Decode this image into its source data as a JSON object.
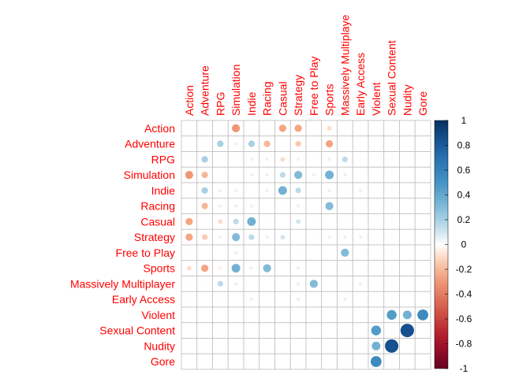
{
  "chart_data": {
    "type": "heatmap",
    "labels": [
      "Action",
      "Adventure",
      "RPG",
      "Simulation",
      "Indie",
      "Racing",
      "Casual",
      "Strategy",
      "Free to Play",
      "Sports",
      "Massively Multiplayer",
      "Early Access",
      "Violent",
      "Sexual Content",
      "Nudity",
      "Gore"
    ],
    "header_labels": [
      "Action",
      "Adventure",
      "RPG",
      "Simulation",
      "Indie",
      "Racing",
      "Casual",
      "Strategy",
      "Free to Play",
      "Sports",
      "Massively Multiplaye",
      "Early Access",
      "Violent",
      "Sexual Content",
      "Nudity",
      "Gore"
    ],
    "matrix": [
      [
        0,
        0.02,
        0,
        -0.3,
        0,
        0,
        -0.25,
        -0.25,
        0.02,
        -0.1,
        0.02,
        0.02,
        0,
        0,
        0,
        0
      ],
      [
        0.02,
        0,
        0.2,
        -0.05,
        0.2,
        -0.2,
        0,
        -0.15,
        0,
        -0.25,
        0.02,
        0,
        0,
        0,
        0,
        0
      ],
      [
        0,
        0.2,
        0,
        0,
        0.05,
        -0.05,
        -0.1,
        -0.05,
        0,
        -0.05,
        0.15,
        0.02,
        0,
        0.02,
        0,
        0
      ],
      [
        -0.3,
        -0.2,
        0,
        0,
        -0.05,
        0.05,
        0.15,
        0.3,
        0.05,
        0.35,
        0.05,
        0,
        0,
        0,
        0,
        0
      ],
      [
        0,
        0.2,
        0.05,
        -0.05,
        0,
        -0.05,
        0.35,
        0.15,
        0,
        0.05,
        0,
        0.05,
        0,
        0,
        0,
        0
      ],
      [
        0,
        -0.2,
        -0.05,
        0.05,
        -0.05,
        0,
        0.02,
        -0.05,
        0,
        0.3,
        0,
        0,
        0,
        0,
        0,
        0
      ],
      [
        -0.25,
        0,
        -0.1,
        0.15,
        0.35,
        0.02,
        0,
        0.1,
        0.02,
        0,
        0,
        0,
        0,
        0,
        0,
        0
      ],
      [
        -0.25,
        -0.15,
        -0.05,
        0.3,
        0.15,
        -0.05,
        0.1,
        0,
        0.02,
        0.05,
        -0.05,
        0.05,
        0,
        0,
        0,
        0
      ],
      [
        0.02,
        0,
        0,
        0.05,
        0,
        0,
        0.02,
        0.02,
        0,
        0,
        0.3,
        0,
        0,
        0,
        0,
        0
      ],
      [
        -0.1,
        -0.25,
        -0.05,
        0.35,
        0.05,
        0.3,
        0,
        0.05,
        0,
        0,
        0,
        0,
        0,
        0,
        0,
        0
      ],
      [
        0.02,
        0.02,
        0.15,
        0.05,
        0,
        0,
        0,
        -0.05,
        0.3,
        0,
        0,
        0.05,
        0,
        0,
        0,
        0
      ],
      [
        0.02,
        0,
        0.02,
        0,
        0.05,
        0,
        0,
        0.05,
        0,
        0,
        0.05,
        0,
        0,
        0,
        0,
        0
      ],
      [
        0,
        0,
        0,
        0,
        0,
        0,
        0,
        0,
        0,
        0,
        0,
        0,
        0,
        0.45,
        0.35,
        0.55
      ],
      [
        0,
        0,
        0.02,
        0,
        0,
        0,
        0,
        0,
        0,
        0,
        0,
        0,
        0.45,
        0,
        0.85,
        0
      ],
      [
        0,
        0,
        0,
        0,
        0,
        0,
        0,
        0,
        0,
        0,
        0,
        0,
        0.35,
        0.85,
        0,
        0
      ],
      [
        0,
        0,
        0,
        0,
        0,
        0,
        0,
        0,
        0,
        0,
        0,
        0,
        0.55,
        0,
        0,
        0
      ]
    ],
    "colorbar": {
      "ticks": [
        1,
        0.8,
        0.6,
        0.4,
        0.2,
        0,
        -0.2,
        -0.4,
        -0.6,
        -0.8,
        -1
      ],
      "range": [
        -1,
        1
      ]
    },
    "colors": {
      "positive": "#053061",
      "negative": "#67001f",
      "neutral": "#ffffff",
      "label": "#ff0000",
      "grid": "#bebebe"
    }
  }
}
